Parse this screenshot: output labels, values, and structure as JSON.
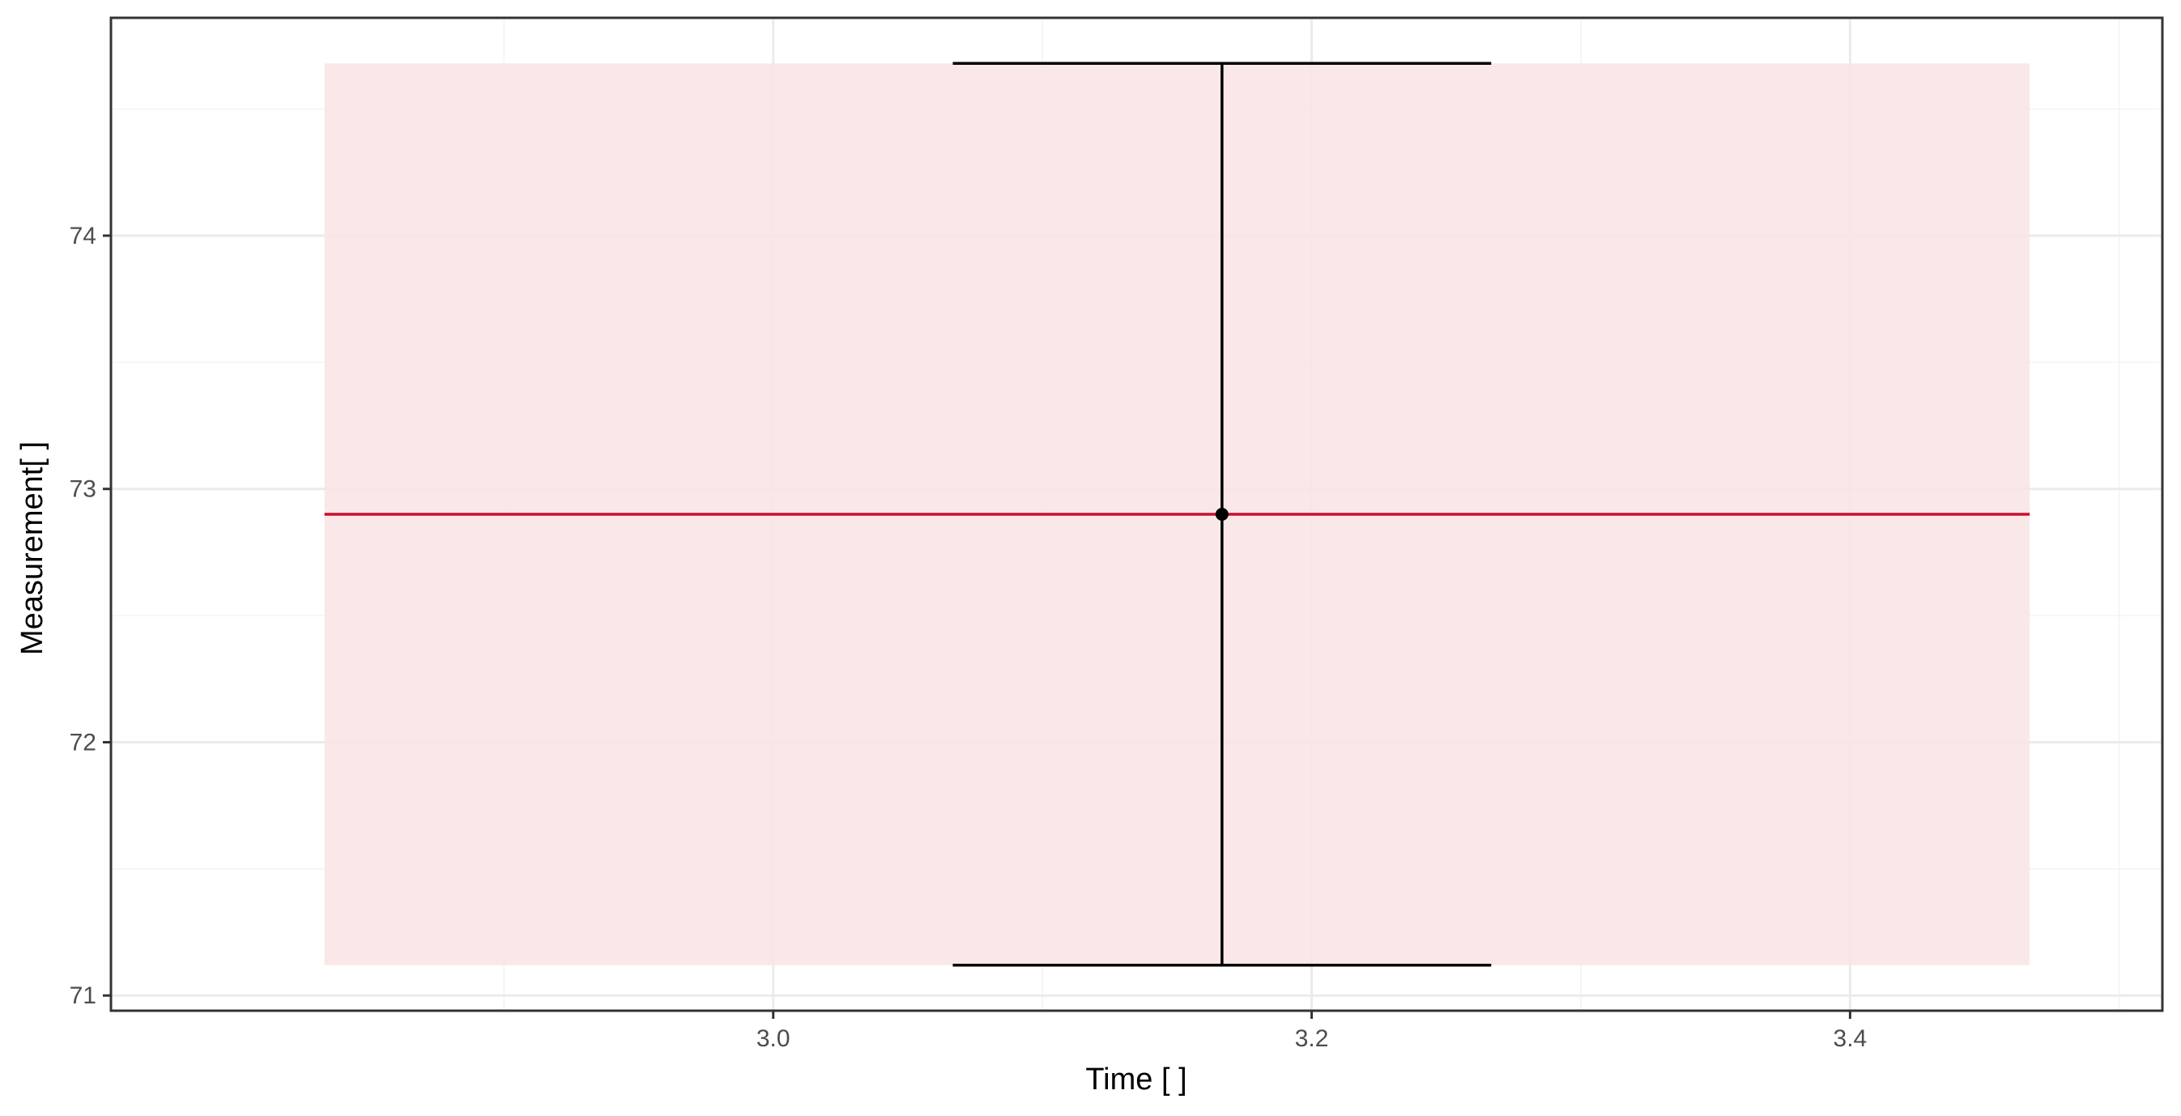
{
  "chart_data": {
    "type": "line",
    "title": "",
    "xlabel": "Time [ ]",
    "ylabel": "Measurement[ ]",
    "xlim": [
      2.754,
      3.516
    ],
    "ylim": [
      70.94,
      74.86
    ],
    "x_ticks": [
      {
        "value": 3.0,
        "label": "3.0"
      },
      {
        "value": 3.2,
        "label": "3.2"
      },
      {
        "value": 3.4,
        "label": "3.4"
      }
    ],
    "y_ticks": [
      {
        "value": 71,
        "label": "71"
      },
      {
        "value": 72,
        "label": "72"
      },
      {
        "value": 73,
        "label": "73"
      },
      {
        "value": 74,
        "label": "74"
      }
    ],
    "x_minor_ticks": [
      2.9,
      3.1,
      3.3,
      3.5
    ],
    "y_minor_ticks": [
      71.5,
      72.5,
      73.5,
      74.5
    ],
    "grid": true,
    "legend": "none",
    "band": {
      "x_start": 2.8333,
      "x_end": 3.4667,
      "y_low": 71.12,
      "y_high": 74.68,
      "color": "#f9e6e6"
    },
    "mean_line": {
      "y": 72.9,
      "x_start": 2.8333,
      "x_end": 3.4667,
      "color": "#c8102e"
    },
    "points": [
      {
        "x": 3.1667,
        "y": 72.9,
        "y_low": 71.12,
        "y_high": 74.68,
        "cap_x_start": 3.0667,
        "cap_x_end": 3.2667
      }
    ],
    "colors": {
      "point": "#000000",
      "errorbar": "#000000",
      "grid_major": "#ebebeb",
      "grid_minor": "#f4f4f4",
      "panel_border": "#333333",
      "tick_text": "#4d4d4d"
    }
  }
}
